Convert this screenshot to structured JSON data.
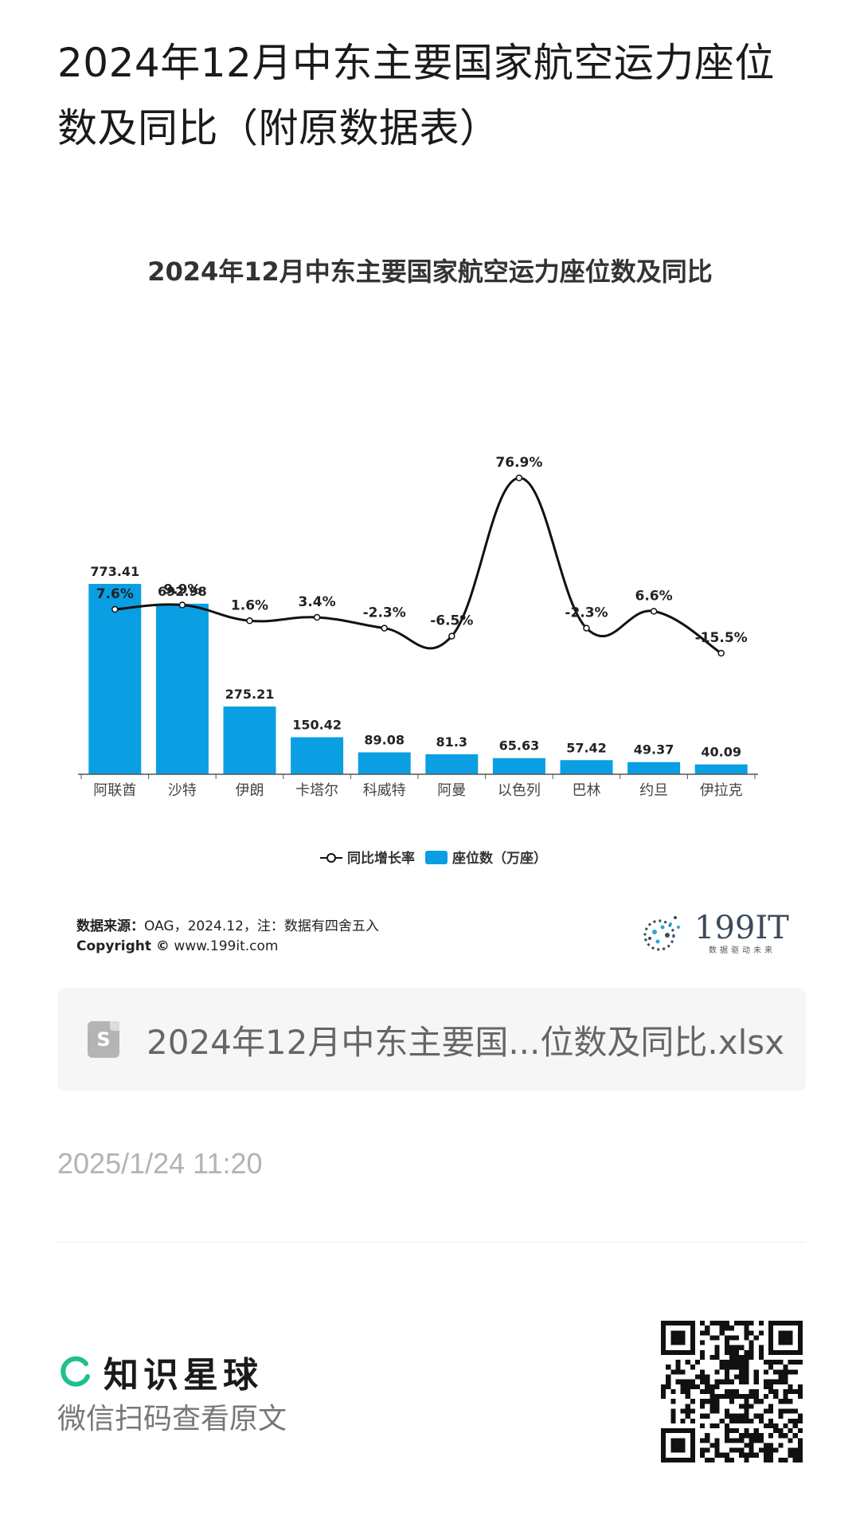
{
  "post": {
    "title": "2024年12月中东主要国家航空运力座位数及同比（附原数据表）",
    "time": "2025/1/24 11:20"
  },
  "chart_data": {
    "type": "bar",
    "title": "2024年12月中东主要国家航空运力座位数及同比",
    "categories": [
      "阿联酋",
      "沙特",
      "伊朗",
      "卡塔尔",
      "科威特",
      "阿曼",
      "以色列",
      "巴林",
      "约旦",
      "伊拉克"
    ],
    "series": [
      {
        "name": "座位数（万座）",
        "type": "bar",
        "values": [
          773.41,
          692.98,
          275.21,
          150.42,
          89.08,
          81.3,
          65.63,
          57.42,
          49.37,
          40.09
        ],
        "labels": [
          "773.41",
          "692.98",
          "275.21",
          "150.42",
          "89.08",
          "81.3",
          "65.63",
          "57.42",
          "49.37",
          "40.09"
        ],
        "color": "#0a9fe3"
      },
      {
        "name": "同比增长率",
        "type": "line",
        "values": [
          7.6,
          9.9,
          1.6,
          3.4,
          -2.3,
          -6.5,
          76.9,
          -2.3,
          6.6,
          -15.5
        ],
        "labels": [
          "7.6%",
          "9.9%",
          "1.6%",
          "3.4%",
          "-2.3%",
          "-6.5%",
          "76.9%",
          "-2.3%",
          "6.6%",
          "-15.5%"
        ],
        "color": "#111111"
      }
    ],
    "legend_position": "bottom",
    "grid": false
  },
  "footer": {
    "source_label": "数据来源：",
    "source_text": "OAG，2024.12，注：数据有四舍五入",
    "copyright_label": "Copyright ©",
    "copyright_text": "www.199it.com"
  },
  "brand": {
    "name": "199IT",
    "tagline": "数据驱动未来"
  },
  "attachment": {
    "file_name": "2024年12月中东主要国...位数及同比.xlsx",
    "icon_letter": "S",
    "icon": "spreadsheet-file-icon"
  },
  "planet": {
    "name": "知识星球",
    "scan_hint": "微信扫码查看原文",
    "icon": "planet-ring-icon"
  },
  "colors": {
    "bar": "#0a9fe3",
    "line": "#111111",
    "planet_green": "#1fbf8f"
  }
}
